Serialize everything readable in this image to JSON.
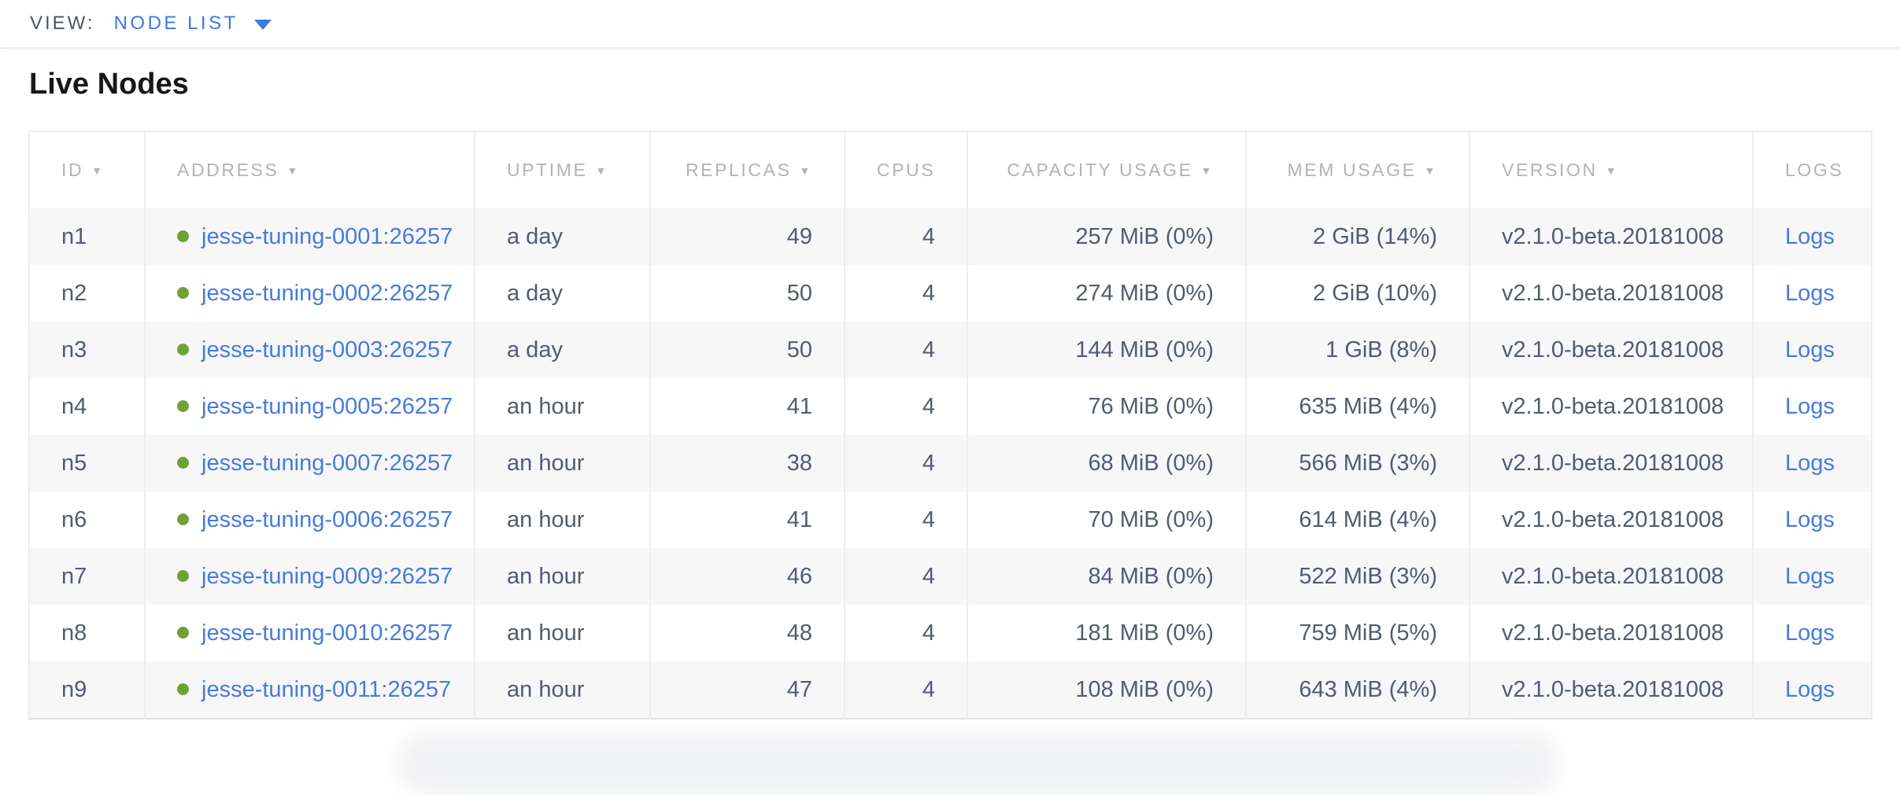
{
  "view_bar": {
    "label": "VIEW:",
    "selected": "NODE LIST"
  },
  "page": {
    "title": "Live Nodes"
  },
  "icons": {
    "sort_indicator": "▼",
    "dropdown_chevron": "chevron-down-icon",
    "live_status": "live-status-dot-icon"
  },
  "colors": {
    "accent_blue": "#3f79da",
    "link_blue": "#477bd9",
    "live_dot_green": "#6da234",
    "header_text_gray": "#b1b3b8",
    "cell_text_slate": "#525b72",
    "row_stripe": "#f7f7f8",
    "border_gray": "#ededed"
  },
  "table": {
    "columns": [
      {
        "key": "id",
        "label": "ID",
        "sortable": true,
        "align": "left"
      },
      {
        "key": "address",
        "label": "ADDRESS",
        "sortable": true,
        "align": "left"
      },
      {
        "key": "uptime",
        "label": "UPTIME",
        "sortable": true,
        "align": "left"
      },
      {
        "key": "replicas",
        "label": "REPLICAS",
        "sortable": true,
        "align": "right"
      },
      {
        "key": "cpus",
        "label": "CPUS",
        "sortable": false,
        "align": "right"
      },
      {
        "key": "capacity",
        "label": "CAPACITY USAGE",
        "sortable": true,
        "align": "right"
      },
      {
        "key": "mem",
        "label": "MEM USAGE",
        "sortable": true,
        "align": "right"
      },
      {
        "key": "version",
        "label": "VERSION",
        "sortable": true,
        "align": "left"
      },
      {
        "key": "logs",
        "label": "LOGS",
        "sortable": false,
        "align": "left"
      }
    ],
    "rows": [
      {
        "id": "n1",
        "status": "live",
        "address": "jesse-tuning-0001:26257",
        "uptime": "a day",
        "replicas": "49",
        "cpus": "4",
        "capacity": "257 MiB (0%)",
        "mem": "2 GiB (14%)",
        "version": "v2.1.0-beta.20181008",
        "logs": "Logs"
      },
      {
        "id": "n2",
        "status": "live",
        "address": "jesse-tuning-0002:26257",
        "uptime": "a day",
        "replicas": "50",
        "cpus": "4",
        "capacity": "274 MiB (0%)",
        "mem": "2 GiB (10%)",
        "version": "v2.1.0-beta.20181008",
        "logs": "Logs"
      },
      {
        "id": "n3",
        "status": "live",
        "address": "jesse-tuning-0003:26257",
        "uptime": "a day",
        "replicas": "50",
        "cpus": "4",
        "capacity": "144 MiB (0%)",
        "mem": "1 GiB (8%)",
        "version": "v2.1.0-beta.20181008",
        "logs": "Logs"
      },
      {
        "id": "n4",
        "status": "live",
        "address": "jesse-tuning-0005:26257",
        "uptime": "an hour",
        "replicas": "41",
        "cpus": "4",
        "capacity": "76 MiB (0%)",
        "mem": "635 MiB (4%)",
        "version": "v2.1.0-beta.20181008",
        "logs": "Logs"
      },
      {
        "id": "n5",
        "status": "live",
        "address": "jesse-tuning-0007:26257",
        "uptime": "an hour",
        "replicas": "38",
        "cpus": "4",
        "capacity": "68 MiB (0%)",
        "mem": "566 MiB (3%)",
        "version": "v2.1.0-beta.20181008",
        "logs": "Logs"
      },
      {
        "id": "n6",
        "status": "live",
        "address": "jesse-tuning-0006:26257",
        "uptime": "an hour",
        "replicas": "41",
        "cpus": "4",
        "capacity": "70 MiB (0%)",
        "mem": "614 MiB (4%)",
        "version": "v2.1.0-beta.20181008",
        "logs": "Logs"
      },
      {
        "id": "n7",
        "status": "live",
        "address": "jesse-tuning-0009:26257",
        "uptime": "an hour",
        "replicas": "46",
        "cpus": "4",
        "capacity": "84 MiB (0%)",
        "mem": "522 MiB (3%)",
        "version": "v2.1.0-beta.20181008",
        "logs": "Logs"
      },
      {
        "id": "n8",
        "status": "live",
        "address": "jesse-tuning-0010:26257",
        "uptime": "an hour",
        "replicas": "48",
        "cpus": "4",
        "capacity": "181 MiB (0%)",
        "mem": "759 MiB (5%)",
        "version": "v2.1.0-beta.20181008",
        "logs": "Logs"
      },
      {
        "id": "n9",
        "status": "live",
        "address": "jesse-tuning-0011:26257",
        "uptime": "an hour",
        "replicas": "47",
        "cpus": "4",
        "capacity": "108 MiB (0%)",
        "mem": "643 MiB (4%)",
        "version": "v2.1.0-beta.20181008",
        "logs": "Logs"
      }
    ]
  }
}
